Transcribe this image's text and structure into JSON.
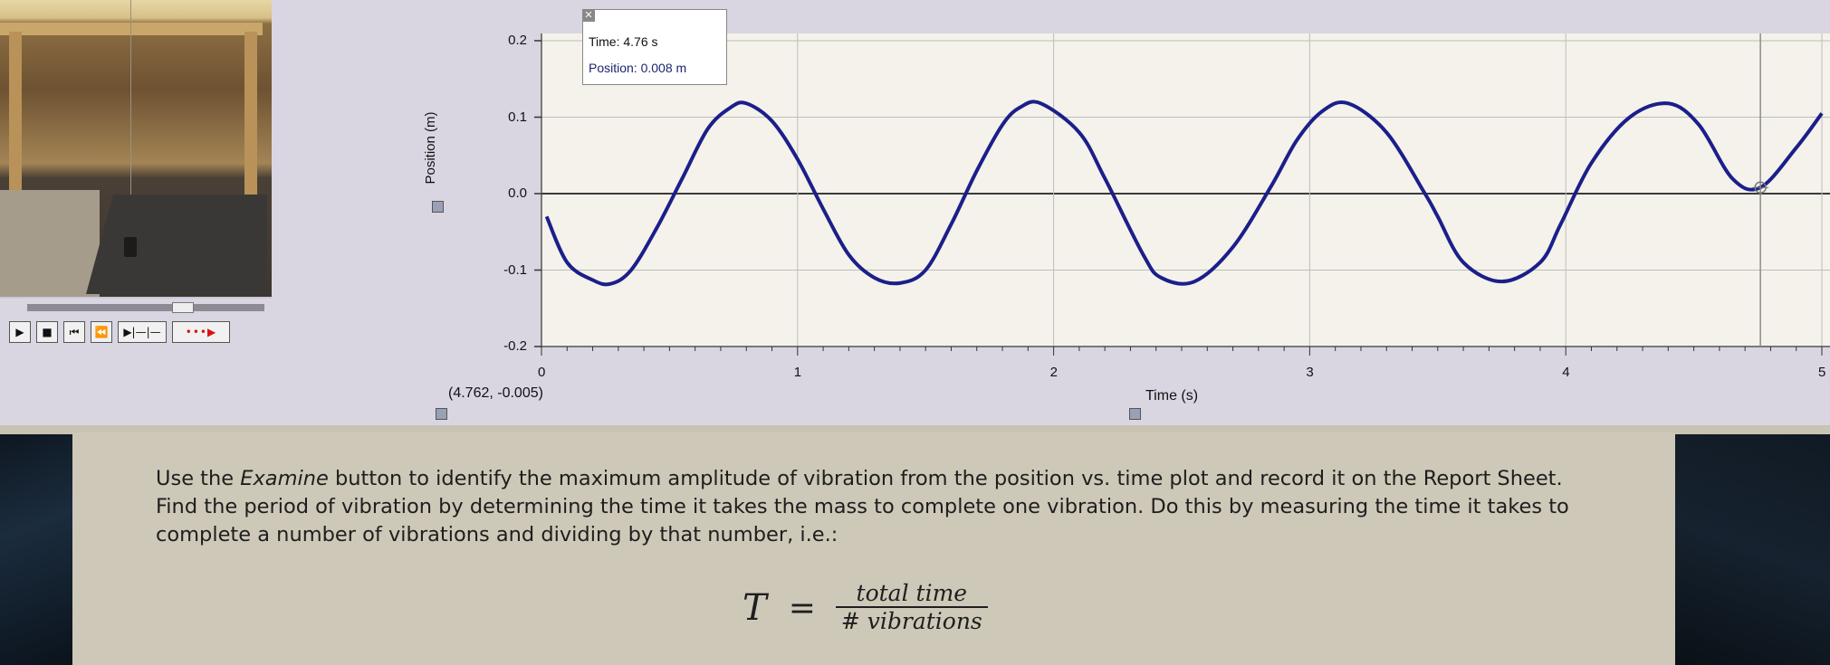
{
  "video": {
    "transport_buttons": [
      {
        "icon": "play-icon",
        "glyph": "▶"
      },
      {
        "icon": "stop-icon",
        "glyph": "■"
      },
      {
        "icon": "skip-start-icon",
        "glyph": "⏮"
      },
      {
        "icon": "rewind-icon",
        "glyph": "⏪"
      },
      {
        "icon": "step-marker-icon",
        "glyph": "▶|—|—"
      },
      {
        "icon": "record-dots-icon",
        "glyph": "•••▶"
      }
    ]
  },
  "graph": {
    "examine": {
      "time_text": "Time: 4.76 s",
      "position_text": "Position: 0.008 m"
    },
    "coordinate_readout": "(4.762, -0.005)",
    "y_axis_label": "Position (m)",
    "x_axis_label": "Time (s)",
    "colors": {
      "trace": "#1b1f8a",
      "grid": "#bdbdbd",
      "plot_bg": "#f4f2ea",
      "zero_line": "#3a3a3a"
    }
  },
  "chart_data": {
    "type": "line",
    "title": "",
    "xlabel": "Time (s)",
    "ylabel": "Position (m)",
    "xlim": [
      0,
      5
    ],
    "ylim": [
      -0.2,
      0.2
    ],
    "x_ticks": [
      "0",
      "1",
      "2",
      "3",
      "4",
      "5"
    ],
    "y_ticks": [
      "0.2",
      "0.1",
      "0.0",
      "-0.1",
      "-0.2"
    ],
    "grid": true,
    "series": [
      {
        "x": [
          0.02,
          0.1,
          0.2,
          0.27,
          0.35,
          0.45,
          0.55,
          0.65,
          0.74,
          0.8,
          0.9,
          1.0,
          1.1,
          1.2,
          1.3,
          1.4,
          1.5,
          1.6,
          1.7,
          1.8,
          1.87,
          1.95,
          2.1,
          2.2,
          2.35,
          2.42,
          2.55,
          2.7,
          2.85,
          2.95,
          3.05,
          3.15,
          3.3,
          3.45,
          3.5,
          3.6,
          3.75,
          3.9,
          3.98,
          4.1,
          4.25,
          4.4,
          4.52,
          4.65,
          4.76,
          4.9,
          5.0
        ],
        "y": [
          -0.03,
          -0.09,
          -0.113,
          -0.118,
          -0.1,
          -0.045,
          0.02,
          0.085,
          0.113,
          0.118,
          0.095,
          0.045,
          -0.02,
          -0.08,
          -0.11,
          -0.117,
          -0.1,
          -0.04,
          0.03,
          0.09,
          0.113,
          0.118,
          0.08,
          0.02,
          -0.08,
          -0.11,
          -0.115,
          -0.07,
          0.01,
          0.07,
          0.108,
          0.118,
          0.08,
          0.0,
          -0.03,
          -0.09,
          -0.115,
          -0.09,
          -0.04,
          0.04,
          0.1,
          0.118,
          0.09,
          0.02,
          0.008,
          0.06,
          0.105
        ]
      }
    ],
    "cursor": {
      "x": 4.76,
      "y": 0.008
    }
  },
  "instructions": {
    "part1": "Use the ",
    "emphasis": "Examine",
    "part2": " button to identify the maximum amplitude of vibration from the position vs. time plot and record it on the Report Sheet. Find the period of vibration by determining the time it takes the mass to complete one vibration. Do this by measuring the time it takes to complete a number of vibrations and dividing by that number, i.e.:"
  },
  "formula": {
    "lhs": "T",
    "eq": "=",
    "numerator": "total time",
    "denominator": "# vibrations"
  }
}
